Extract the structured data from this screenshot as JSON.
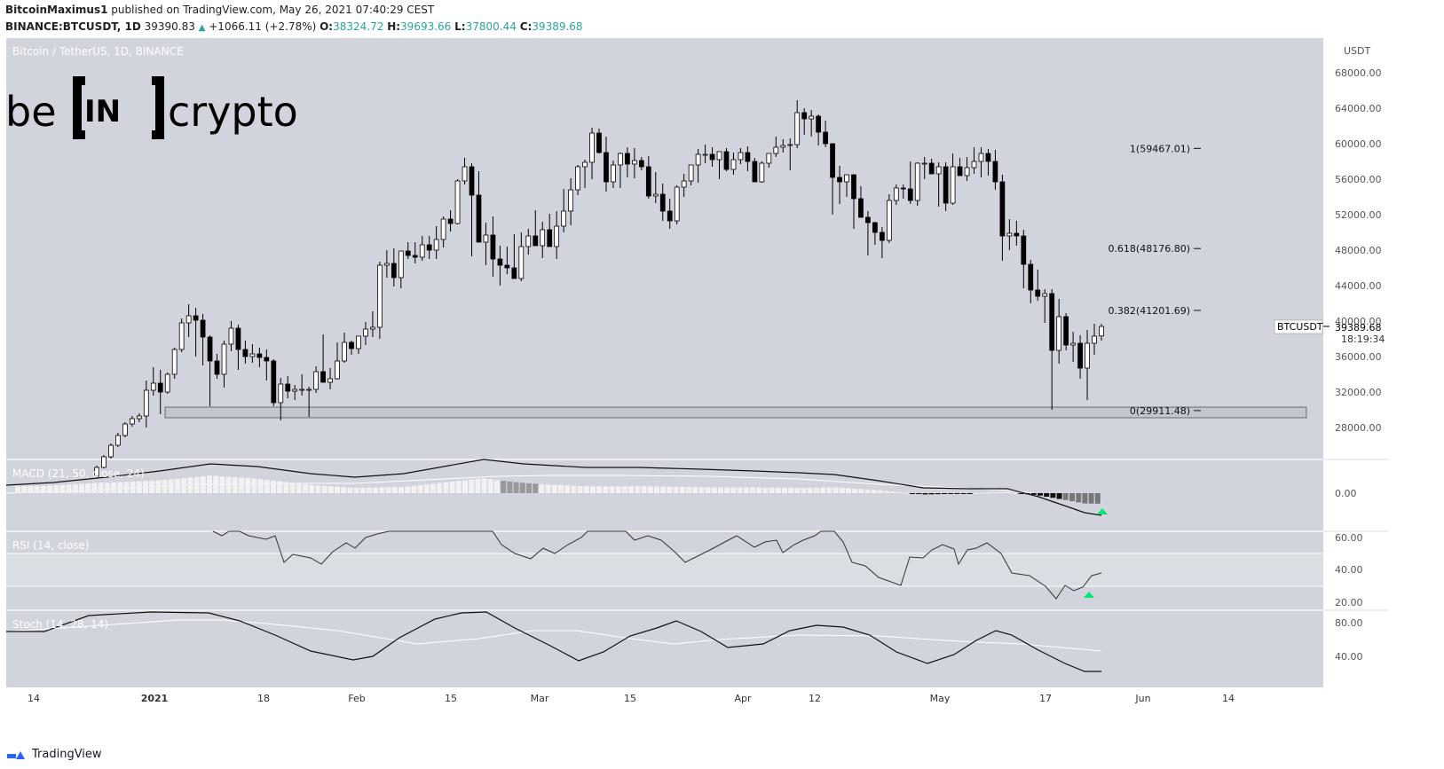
{
  "header": {
    "line1_user": "BitcoinMaximus1",
    "line1_rest": "published on TradingView.com, May 26, 2021 07:40:29 CEST",
    "symbol": "BINANCE:BTCUSDT, 1D",
    "last": "39390.83",
    "change": "+1066.11 (+2.78%)",
    "o_label": "O:",
    "o": "38324.72",
    "h_label": "H:",
    "h": "39693.66",
    "l_label": "L:",
    "l": "37800.44",
    "c_label": "C:",
    "c": "39389.68"
  },
  "chart_title": "Bitcoin / TetherUS, 1D, BINANCE",
  "logo": {
    "left": "be",
    "mid": "IN",
    "right": "crypto"
  },
  "price_axis": {
    "unit": "USDT",
    "ticks": [
      "68000.00",
      "64000.00",
      "60000.00",
      "56000.00",
      "52000.00",
      "48000.00",
      "44000.00",
      "40000.00",
      "36000.00",
      "32000.00",
      "28000.00"
    ]
  },
  "price_label": {
    "symbol": "BTCUSDT",
    "price": "39389.68",
    "countdown": "18:19:34"
  },
  "fib_levels": [
    {
      "label": "1(59467.01)",
      "value": 59467.01
    },
    {
      "label": "0.618(48176.80)",
      "value": 48176.8
    },
    {
      "label": "0.382(41201.69)",
      "value": 41201.69
    },
    {
      "label": "0(29911.48)",
      "value": 29911.48
    }
  ],
  "support_zone": {
    "low": 29100,
    "high": 30300
  },
  "x_axis": {
    "ticks": [
      "14",
      "2021",
      "18",
      "Feb",
      "15",
      "Mar",
      "15",
      "Apr",
      "12",
      "May",
      "17",
      "Jun",
      "14"
    ]
  },
  "macd": {
    "title": "MACD (21, 50, close, 24)",
    "tick": "0.00"
  },
  "rsi": {
    "title": "RSI (14, close)",
    "ticks": [
      "60.00",
      "40.00",
      "20.00"
    ]
  },
  "stoch": {
    "title": "Stoch (14, 28, 14)",
    "ticks": [
      "80.00",
      "40.00"
    ]
  },
  "footer": {
    "brand": "TradingView"
  },
  "colors": {
    "pane_bg": "#d1d4dc",
    "up_candle": "#ffffff",
    "down_candle": "#000000",
    "signal": "#00e676"
  },
  "chart_data": {
    "type": "candlestick",
    "title": "Bitcoin / TetherUS, 1D, BINANCE",
    "ylabel": "USDT",
    "ylim": [
      25000,
      70000
    ],
    "series_ohlc_estimated": [
      [
        22500,
        23700,
        22300,
        23500
      ],
      [
        23500,
        24900,
        23400,
        24700
      ],
      [
        24700,
        26200,
        24500,
        26000
      ],
      [
        26000,
        27400,
        25800,
        27100
      ],
      [
        27100,
        28600,
        26900,
        28400
      ],
      [
        28400,
        29300,
        28100,
        29000
      ],
      [
        29000,
        29600,
        28600,
        29300
      ],
      [
        29300,
        33300,
        28000,
        32200
      ],
      [
        32200,
        34800,
        31600,
        33000
      ],
      [
        33000,
        34500,
        29500,
        32000
      ],
      [
        32000,
        34200,
        31800,
        34000
      ],
      [
        34000,
        37000,
        33500,
        36800
      ],
      [
        36800,
        40300,
        36500,
        39800
      ],
      [
        39800,
        41900,
        38200,
        40600
      ],
      [
        40600,
        41500,
        36000,
        40100
      ],
      [
        40100,
        40800,
        35000,
        38200
      ],
      [
        38200,
        38400,
        30400,
        35500
      ],
      [
        35500,
        36300,
        33500,
        34000
      ],
      [
        34000,
        37800,
        32500,
        37400
      ],
      [
        37400,
        40000,
        36600,
        39200
      ],
      [
        39200,
        39600,
        34500,
        36800
      ],
      [
        36800,
        37800,
        35200,
        36000
      ],
      [
        36000,
        37400,
        35300,
        36300
      ],
      [
        36300,
        37000,
        34800,
        35900
      ],
      [
        35900,
        36800,
        33300,
        35500
      ],
      [
        35500,
        35700,
        30400,
        30800
      ],
      [
        30800,
        33600,
        28800,
        32900
      ],
      [
        32900,
        33800,
        31300,
        32100
      ],
      [
        32100,
        32800,
        31100,
        32300
      ],
      [
        32300,
        34000,
        31600,
        32300
      ],
      [
        32300,
        32600,
        29200,
        32300
      ],
      [
        32300,
        34900,
        31900,
        34300
      ],
      [
        34300,
        38500,
        33500,
        33100
      ],
      [
        33100,
        34700,
        32300,
        33500
      ],
      [
        33500,
        37600,
        33400,
        35500
      ],
      [
        35500,
        38700,
        35300,
        37600
      ],
      [
        37600,
        37800,
        36200,
        36900
      ],
      [
        36900,
        38300,
        36300,
        38300
      ],
      [
        38300,
        39900,
        37300,
        39100
      ],
      [
        39100,
        41100,
        38200,
        39300
      ],
      [
        39300,
        46700,
        38000,
        46300
      ],
      [
        46300,
        48000,
        44900,
        46500
      ],
      [
        46500,
        48200,
        43900,
        44900
      ],
      [
        44900,
        47400,
        43700,
        47900
      ],
      [
        47900,
        48900,
        47000,
        47400
      ],
      [
        47400,
        48900,
        46500,
        47200
      ],
      [
        47200,
        49600,
        46800,
        48600
      ],
      [
        48600,
        49600,
        47000,
        48000
      ],
      [
        48000,
        50700,
        47000,
        49200
      ],
      [
        49200,
        51800,
        48300,
        51500
      ],
      [
        51500,
        52500,
        50100,
        51000
      ],
      [
        51000,
        56000,
        50900,
        55800
      ],
      [
        55800,
        58400,
        55400,
        57400
      ],
      [
        57400,
        57800,
        47300,
        54200
      ],
      [
        54200,
        56900,
        53700,
        48900
      ],
      [
        48900,
        51100,
        46300,
        49700
      ],
      [
        49700,
        51800,
        45000,
        47000
      ],
      [
        47000,
        48500,
        44000,
        46300
      ],
      [
        46300,
        48400,
        45300,
        46000
      ],
      [
        46000,
        49800,
        45600,
        44800
      ],
      [
        44800,
        50000,
        44500,
        48400
      ],
      [
        48400,
        50400,
        47500,
        49600
      ],
      [
        49600,
        52500,
        49200,
        48500
      ],
      [
        48500,
        51200,
        47100,
        50300
      ],
      [
        50300,
        52100,
        49300,
        48400
      ],
      [
        48400,
        52400,
        47000,
        50700
      ],
      [
        50700,
        54900,
        50000,
        52400
      ],
      [
        52400,
        56100,
        50800,
        54800
      ],
      [
        54800,
        57600,
        54200,
        57400
      ],
      [
        57400,
        58200,
        55000,
        57900
      ],
      [
        57900,
        61800,
        56000,
        61200
      ],
      [
        61200,
        61700,
        58900,
        59000
      ],
      [
        59000,
        60800,
        54600,
        55700
      ],
      [
        55700,
        58100,
        55000,
        57600
      ],
      [
        57600,
        59000,
        55000,
        58900
      ],
      [
        58900,
        59600,
        56200,
        57700
      ],
      [
        57700,
        59500,
        56100,
        58100
      ],
      [
        58100,
        58500,
        57000,
        57400
      ],
      [
        57400,
        58600,
        53800,
        54100
      ],
      [
        54100,
        56800,
        53300,
        54300
      ],
      [
        54300,
        55500,
        51300,
        52400
      ],
      [
        52400,
        53800,
        50400,
        51300
      ],
      [
        51300,
        55300,
        50900,
        55100
      ],
      [
        55100,
        56600,
        54000,
        55800
      ],
      [
        55800,
        57200,
        55300,
        57600
      ],
      [
        57600,
        59400,
        55600,
        58800
      ],
      [
        58800,
        59900,
        57800,
        58800
      ],
      [
        58800,
        59600,
        57400,
        58200
      ],
      [
        58200,
        58800,
        56000,
        59100
      ],
      [
        59100,
        59500,
        56900,
        57100
      ],
      [
        57100,
        59000,
        56500,
        58200
      ],
      [
        58200,
        59500,
        57700,
        59000
      ],
      [
        59000,
        59700,
        56900,
        58000
      ],
      [
        58000,
        58400,
        55900,
        55700
      ],
      [
        55700,
        58000,
        55600,
        57800
      ],
      [
        57800,
        58800,
        57300,
        58900
      ],
      [
        58900,
        60800,
        58500,
        59600
      ],
      [
        59600,
        60500,
        59000,
        59800
      ],
      [
        59800,
        60600,
        57000,
        59900
      ],
      [
        59900,
        64900,
        59500,
        63500
      ],
      [
        63500,
        64000,
        61000,
        62800
      ],
      [
        62800,
        63800,
        60800,
        63100
      ],
      [
        63100,
        63300,
        59800,
        61300
      ],
      [
        61300,
        62600,
        59600,
        60000
      ],
      [
        60000,
        60000,
        52000,
        56200
      ],
      [
        56200,
        57500,
        53200,
        55700
      ],
      [
        55700,
        56500,
        54000,
        56500
      ],
      [
        56500,
        56500,
        50400,
        53800
      ],
      [
        53800,
        55200,
        52000,
        51700
      ],
      [
        51700,
        52400,
        47400,
        51100
      ],
      [
        51100,
        51200,
        48600,
        50000
      ],
      [
        50000,
        50600,
        47100,
        49100
      ],
      [
        49100,
        54300,
        48800,
        53600
      ],
      [
        53600,
        55400,
        53100,
        55000
      ],
      [
        55000,
        55400,
        53800,
        54900
      ],
      [
        54900,
        58000,
        53200,
        53600
      ],
      [
        53600,
        57900,
        53000,
        57800
      ],
      [
        57800,
        58500,
        56000,
        57800
      ],
      [
        57800,
        58300,
        56800,
        56600
      ],
      [
        56600,
        57900,
        52900,
        57400
      ],
      [
        57400,
        57900,
        52400,
        53300
      ],
      [
        53300,
        58900,
        53100,
        57400
      ],
      [
        57400,
        58400,
        56500,
        56400
      ],
      [
        56400,
        58500,
        55800,
        57300
      ],
      [
        57300,
        59600,
        56600,
        58000
      ],
      [
        58000,
        59600,
        56200,
        58900
      ],
      [
        58900,
        59400,
        56400,
        58000
      ],
      [
        58000,
        59300,
        54800,
        55700
      ],
      [
        55700,
        56500,
        46800,
        49600
      ],
      [
        49600,
        51500,
        48000,
        49900
      ],
      [
        49900,
        51300,
        48500,
        49600
      ],
      [
        49600,
        50300,
        43700,
        46400
      ],
      [
        46400,
        46900,
        42000,
        43500
      ],
      [
        43500,
        45800,
        42300,
        42800
      ],
      [
        42800,
        43600,
        39800,
        43100
      ],
      [
        43100,
        43600,
        30000,
        36700
      ],
      [
        36700,
        42500,
        35200,
        40500
      ],
      [
        40500,
        40900,
        36700,
        37300
      ],
      [
        37300,
        38800,
        35400,
        37500
      ],
      [
        37500,
        38400,
        33500,
        34700
      ],
      [
        34700,
        39000,
        31100,
        37500
      ],
      [
        37500,
        39700,
        36200,
        38300
      ],
      [
        38324,
        39694,
        37800,
        39390
      ]
    ],
    "macd": {
      "histogram_range": "negative through May",
      "zero_line": 0.0
    },
    "rsi_last": 38,
    "stoch_last": 30
  }
}
